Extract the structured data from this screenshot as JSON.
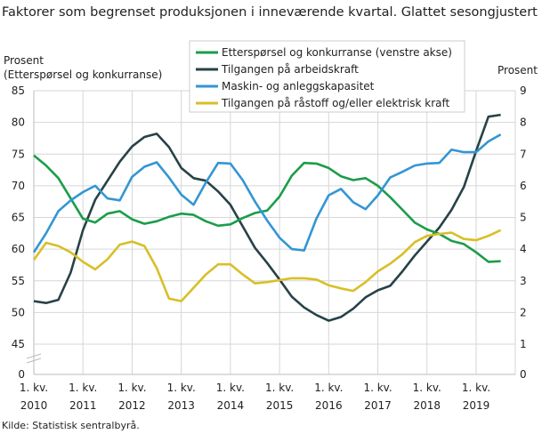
{
  "chart_data": {
    "type": "line",
    "title": "Faktorer som begrenset produksjonen i inneværende kvartal. Glattet sesongjustert",
    "ylabel_left": [
      "Prosent",
      "(Etterspørsel  og konkurranse)"
    ],
    "ylabel_right": "Prosent",
    "source": "Kilde: Statistisk sentralbyrå.",
    "y_left_ticks": [
      0,
      45,
      50,
      55,
      60,
      65,
      70,
      75,
      80,
      85
    ],
    "y_right_ticks": [
      0,
      1,
      2,
      3,
      4,
      5,
      6,
      7,
      8,
      9
    ],
    "y_left_axis_break": true,
    "x_ticks": [
      {
        "line1": "1. kv.",
        "line2": "2010"
      },
      {
        "line1": "1. kv.",
        "line2": "2011"
      },
      {
        "line1": "1. kv.",
        "line2": "2012"
      },
      {
        "line1": "1. kv.",
        "line2": "2013"
      },
      {
        "line1": "1. kv.",
        "line2": "2014"
      },
      {
        "line1": "1. kv.",
        "line2": "2015"
      },
      {
        "line1": "1. kv.",
        "line2": "2016"
      },
      {
        "line1": "1. kv.",
        "line2": "2017"
      },
      {
        "line1": "1. kv.",
        "line2": "2018"
      },
      {
        "line1": "1. kv.",
        "line2": "2019"
      }
    ],
    "x_start": "2010Q1",
    "grid": true,
    "legend_placement": "top-center",
    "series": [
      {
        "name": "Etterspørsel og konkurranse (venstre akse)",
        "axis": "left",
        "color": "#1a9d49",
        "values": [
          74.8,
          73.2,
          71.2,
          68,
          64.8,
          64.2,
          65.6,
          66,
          64.7,
          64,
          64.4,
          65.1,
          65.6,
          65.4,
          64.4,
          63.7,
          63.9,
          64.9,
          65.7,
          66.1,
          68.3,
          71.6,
          73.6,
          73.5,
          72.8,
          71.5,
          70.9,
          71.2,
          70,
          68.2,
          66.2,
          64.2,
          63.1,
          62.4,
          61.3,
          60.8,
          59.5,
          58,
          58.1
        ]
      },
      {
        "name": "Tilgangen på arbeidskraft",
        "axis": "left",
        "color": "#274247",
        "values": [
          51.8,
          51.5,
          52,
          56.3,
          63,
          67.8,
          70.8,
          73.8,
          76.2,
          77.7,
          78.2,
          76.1,
          72.8,
          71.2,
          70.8,
          69.1,
          67,
          63.6,
          60.2,
          57.8,
          55.2,
          52.5,
          50.8,
          49.6,
          48.7,
          49.3,
          50.6,
          52.4,
          53.5,
          54.2,
          56.5,
          59,
          61.2,
          63.4,
          66.2,
          69.8,
          75.5,
          80.9,
          81.2
        ]
      },
      {
        "name": "Maskin- og anleggskapasitet",
        "axis": "right",
        "color": "#3396d3",
        "values": [
          3.9,
          4.5,
          5.2,
          5.54,
          5.8,
          6.0,
          5.6,
          5.54,
          6.28,
          6.6,
          6.74,
          6.26,
          5.72,
          5.4,
          6.1,
          6.72,
          6.7,
          6.18,
          5.5,
          4.9,
          4.36,
          4.0,
          3.96,
          4.96,
          5.7,
          5.9,
          5.48,
          5.26,
          5.7,
          6.26,
          6.44,
          6.64,
          6.7,
          6.72,
          7.14,
          7.06,
          7.06,
          7.4,
          7.62
        ]
      },
      {
        "name": "Tilgangen på råstoff og/eller elektrisk kraft",
        "axis": "right",
        "color": "#d8bf27",
        "values": [
          3.66,
          4.2,
          4.1,
          3.9,
          3.6,
          3.36,
          3.68,
          4.14,
          4.24,
          4.1,
          3.4,
          2.44,
          2.36,
          2.78,
          3.2,
          3.52,
          3.52,
          3.2,
          2.92,
          2.96,
          3.02,
          3.08,
          3.08,
          3.04,
          2.86,
          2.76,
          2.68,
          2.96,
          3.3,
          3.54,
          3.84,
          4.22,
          4.42,
          4.48,
          4.52,
          4.32,
          4.28,
          4.42,
          4.6
        ]
      }
    ]
  }
}
